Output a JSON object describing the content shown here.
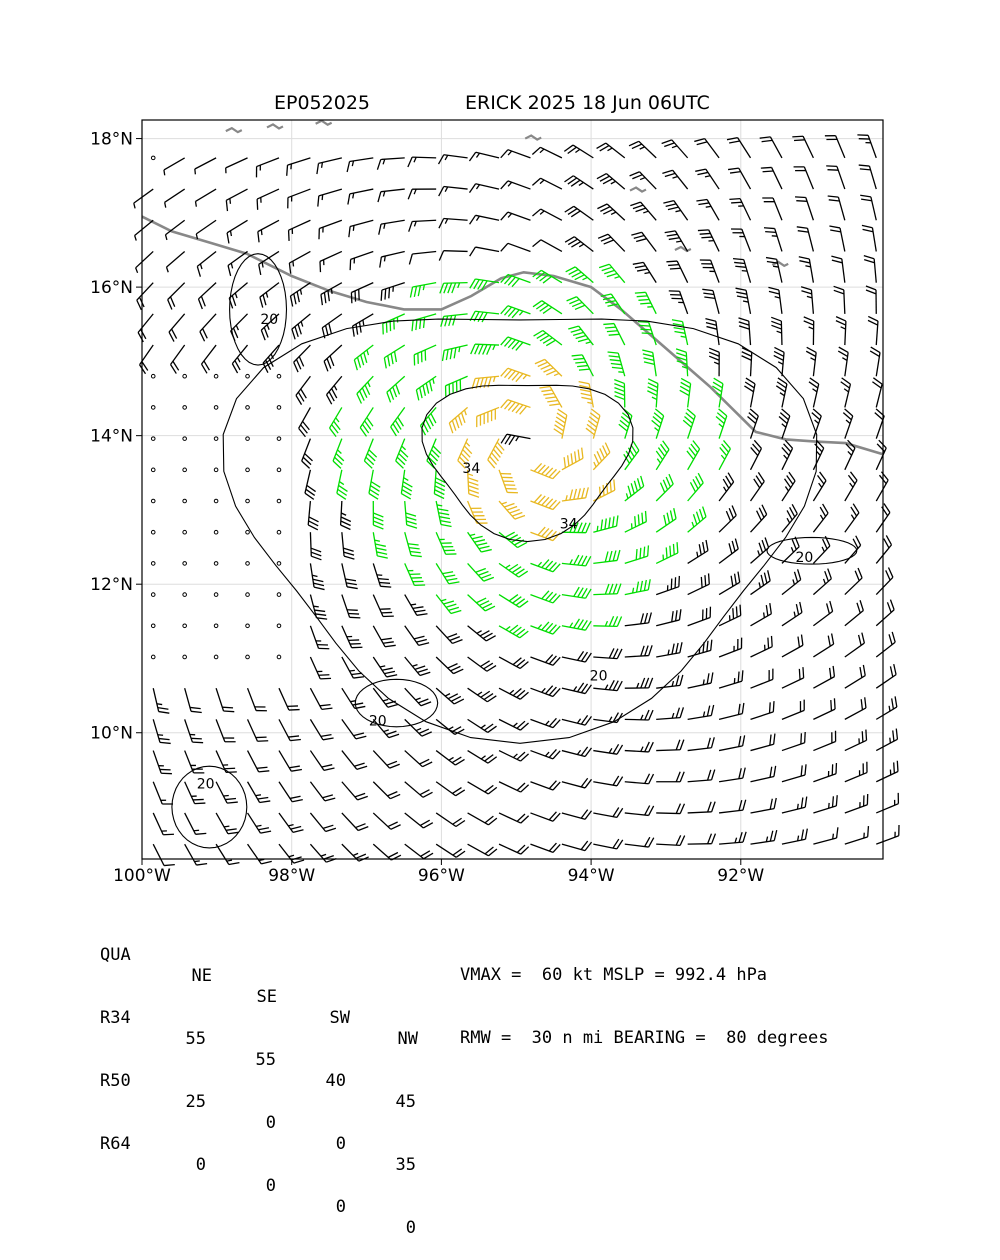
{
  "title_left": "EP052025",
  "title_right": "ERICK 2025 18 Jun 06UTC",
  "colors": {
    "barb_weak": "#000000",
    "barb_r34": "#00dd00",
    "barb_r50": "#e8b820",
    "barb_r64": "#ff5500",
    "coast": "#888888",
    "grid": "#dddddd",
    "contour": "#000000"
  },
  "chart_data": {
    "type": "wind_barb_map",
    "storm_id": "EP052025",
    "storm_name": "ERICK",
    "xlim_lon": [
      -100.0,
      -90.1
    ],
    "ylim_lat": [
      8.3,
      18.25
    ],
    "x_ticks": [
      {
        "value": -100,
        "label": "100°W"
      },
      {
        "value": -98,
        "label": "98°W"
      },
      {
        "value": -96,
        "label": "96°W"
      },
      {
        "value": -94,
        "label": "94°W"
      },
      {
        "value": -92,
        "label": "92°W"
      }
    ],
    "y_ticks": [
      {
        "value": 10,
        "label": "10°N"
      },
      {
        "value": 12,
        "label": "12°N"
      },
      {
        "value": 14,
        "label": "14°N"
      },
      {
        "value": 16,
        "label": "16°N"
      },
      {
        "value": 18,
        "label": "18°N"
      }
    ],
    "grid": true,
    "center": {
      "lon": -94.8,
      "lat": 13.9
    },
    "contour_labels": [
      {
        "text": "34",
        "lon": -95.6,
        "lat": 13.5
      },
      {
        "text": "34",
        "lon": -94.3,
        "lat": 12.75
      },
      {
        "text": "20",
        "lon": -93.9,
        "lat": 10.7
      },
      {
        "text": "20",
        "lon": -98.3,
        "lat": 15.5
      },
      {
        "text": "20",
        "lon": -96.85,
        "lat": 10.1
      },
      {
        "text": "20",
        "lon": -99.15,
        "lat": 9.25
      },
      {
        "text": "20",
        "lon": -91.15,
        "lat": 12.3
      }
    ]
  },
  "table": {
    "headers": [
      "QUA",
      "NE",
      "SE",
      "SW",
      "NW"
    ],
    "rows": [
      {
        "label": "R34",
        "values": [
          "55",
          "55",
          "40",
          "45"
        ]
      },
      {
        "label": "R50",
        "values": [
          "25",
          "0",
          "0",
          "35"
        ]
      },
      {
        "label": "R64",
        "values": [
          "0",
          "0",
          "0",
          "0"
        ]
      }
    ]
  },
  "stats": {
    "line1": "VMAX =  60 kt MSLP = 992.4 hPa",
    "line2": "RMW =  30 n mi BEARING =  80 degrees"
  }
}
